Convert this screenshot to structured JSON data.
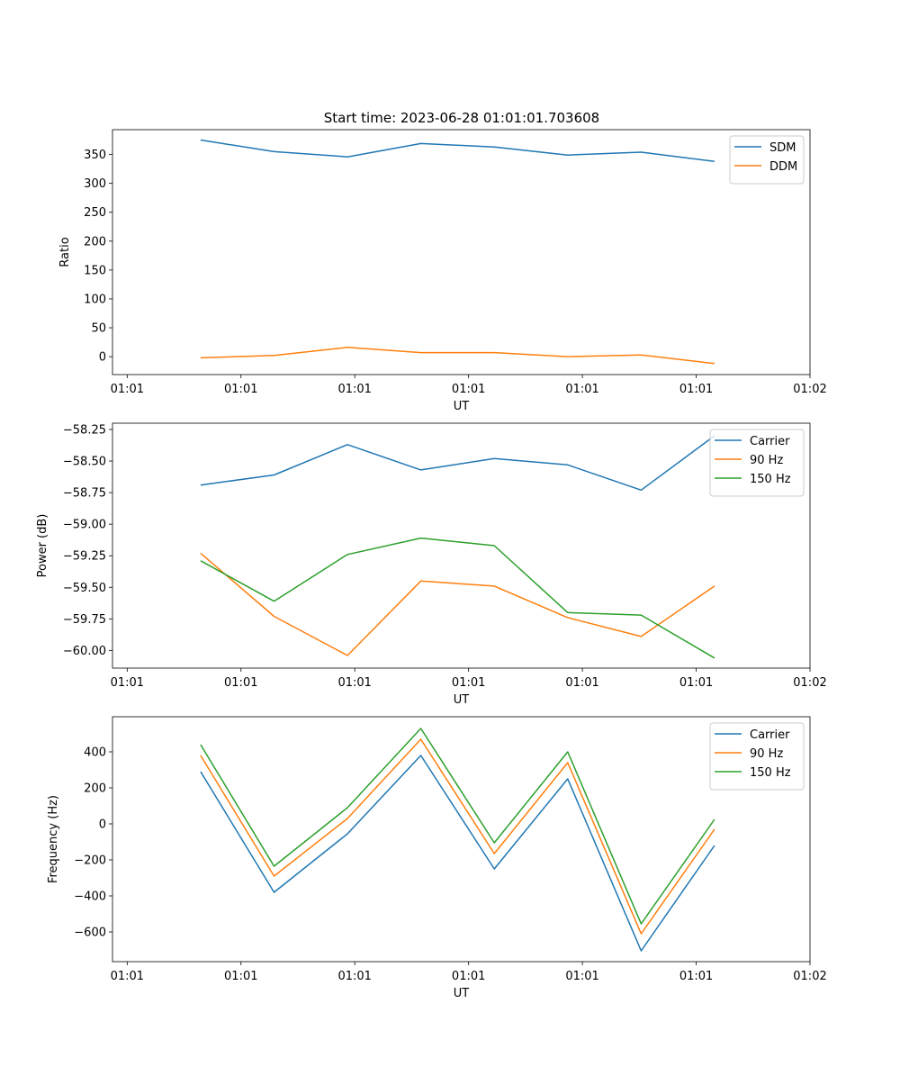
{
  "figure": {
    "title": "Start time: 2023-06-28 01:01:01.703608"
  },
  "colors": {
    "blue": "#1f77b4",
    "orange": "#ff7f0e",
    "green": "#2ca02c",
    "axes": "#000000",
    "background": "#ffffff"
  },
  "chart_data": [
    {
      "type": "line",
      "title": "Start time: 2023-06-28 01:01:01.703608",
      "xlabel": "UT",
      "ylabel": "Ratio",
      "x": [
        1,
        2,
        3,
        4,
        5,
        6,
        7,
        8
      ],
      "x_tick_values": [
        0,
        1.55,
        3.1,
        4.65,
        6.2,
        7.75,
        9.3
      ],
      "x_tick_labels": [
        "01:01",
        "01:01",
        "01:01",
        "01:01",
        "01:01",
        "01:01",
        "01:02"
      ],
      "xlim": [
        -0.2,
        9.3
      ],
      "ylim": [
        -31,
        393
      ],
      "y_ticks": [
        0,
        50,
        100,
        150,
        200,
        250,
        300,
        350
      ],
      "y_tick_labels": [
        "0",
        "50",
        "100",
        "150",
        "200",
        "250",
        "300",
        "350"
      ],
      "legend": "top-right",
      "grid": false,
      "series": [
        {
          "name": "SDM",
          "color": "#1f77b4",
          "values": [
            375,
            355,
            346,
            369,
            363,
            349,
            354,
            338
          ]
        },
        {
          "name": "DDM",
          "color": "#ff7f0e",
          "values": [
            -2,
            2,
            16,
            7,
            7,
            0,
            3,
            -12
          ]
        }
      ]
    },
    {
      "type": "line",
      "title": "",
      "xlabel": "UT",
      "ylabel": "Power (dB)",
      "x": [
        1,
        2,
        3,
        4,
        5,
        6,
        7,
        8
      ],
      "x_tick_values": [
        0,
        1.55,
        3.1,
        4.65,
        6.2,
        7.75,
        9.3
      ],
      "x_tick_labels": [
        "01:01",
        "01:01",
        "01:01",
        "01:01",
        "01:01",
        "01:01",
        "01:02"
      ],
      "xlim": [
        -0.2,
        9.3
      ],
      "ylim": [
        -60.14,
        -58.2
      ],
      "y_ticks": [
        -60.0,
        -59.75,
        -59.5,
        -59.25,
        -59.0,
        -58.75,
        -58.5,
        -58.25
      ],
      "y_tick_labels": [
        "−60.00",
        "−59.75",
        "−59.50",
        "−59.25",
        "−59.00",
        "−58.75",
        "−58.50",
        "−58.25"
      ],
      "legend": "top-right",
      "grid": false,
      "series": [
        {
          "name": "Carrier",
          "color": "#1f77b4",
          "values": [
            -58.69,
            -58.61,
            -58.37,
            -58.57,
            -58.48,
            -58.53,
            -58.73,
            -58.3
          ]
        },
        {
          "name": "90 Hz",
          "color": "#ff7f0e",
          "values": [
            -59.23,
            -59.73,
            -60.04,
            -59.45,
            -59.49,
            -59.74,
            -59.89,
            -59.49
          ]
        },
        {
          "name": "150 Hz",
          "color": "#2ca02c",
          "values": [
            -59.29,
            -59.61,
            -59.24,
            -59.11,
            -59.17,
            -59.7,
            -59.72,
            -60.06
          ]
        }
      ]
    },
    {
      "type": "line",
      "title": "",
      "xlabel": "UT",
      "ylabel": "Frequency (Hz)",
      "x": [
        1,
        2,
        3,
        4,
        5,
        6,
        7,
        8
      ],
      "x_tick_values": [
        0,
        1.55,
        3.1,
        4.65,
        6.2,
        7.75,
        9.3
      ],
      "x_tick_labels": [
        "01:01",
        "01:01",
        "01:01",
        "01:01",
        "01:01",
        "01:01",
        "01:02"
      ],
      "xlim": [
        -0.2,
        9.3
      ],
      "ylim": [
        -765,
        595
      ],
      "y_ticks": [
        -600,
        -400,
        -200,
        0,
        200,
        400
      ],
      "y_tick_labels": [
        "−600",
        "−400",
        "−200",
        "0",
        "200",
        "400"
      ],
      "legend": "top-right",
      "grid": false,
      "series": [
        {
          "name": "Carrier",
          "color": "#1f77b4",
          "values": [
            290,
            -380,
            -55,
            380,
            -250,
            250,
            -705,
            -120
          ]
        },
        {
          "name": "90 Hz",
          "color": "#ff7f0e",
          "values": [
            380,
            -290,
            30,
            470,
            -165,
            340,
            -610,
            -30
          ]
        },
        {
          "name": "150 Hz",
          "color": "#2ca02c",
          "values": [
            440,
            -235,
            90,
            530,
            -105,
            400,
            -555,
            25
          ]
        }
      ]
    }
  ]
}
